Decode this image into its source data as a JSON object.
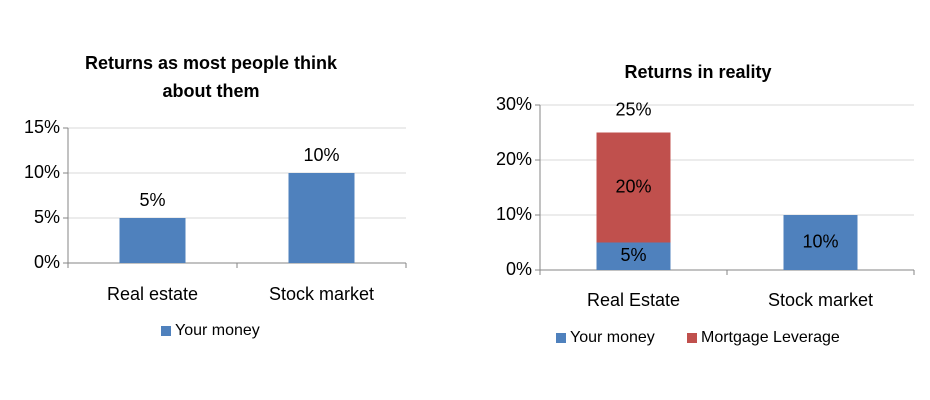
{
  "chart_data": [
    {
      "type": "bar",
      "title": "Returns as most people think about them",
      "categories": [
        "Real estate",
        "Stock market"
      ],
      "series": [
        {
          "name": "Your money",
          "color": "#4f81bd",
          "values": [
            5,
            10
          ],
          "value_labels": [
            "5%",
            "10%"
          ]
        }
      ],
      "ylim": [
        0,
        15
      ],
      "yticks": [
        {
          "value": 0,
          "label": "0%"
        },
        {
          "value": 5,
          "label": "5%"
        },
        {
          "value": 10,
          "label": "10%"
        },
        {
          "value": 15,
          "label": "15%"
        }
      ],
      "grid": true,
      "legend": "bottom",
      "label_position": "above"
    },
    {
      "type": "stacked_bar",
      "title": "Returns in reality",
      "categories": [
        "Real Estate",
        "Stock market"
      ],
      "series": [
        {
          "name": "Your money",
          "color": "#4f81bd",
          "values": [
            5,
            10
          ],
          "value_labels": [
            "5%",
            "10%"
          ]
        },
        {
          "name": "Mortgage Leverage",
          "color": "#c0504d",
          "values": [
            20,
            null
          ],
          "value_labels": [
            "20%",
            null
          ]
        }
      ],
      "totals": [
        25,
        null
      ],
      "total_labels": [
        "25%",
        null
      ],
      "ylim": [
        0,
        30
      ],
      "yticks": [
        {
          "value": 0,
          "label": "0%"
        },
        {
          "value": 10,
          "label": "10%"
        },
        {
          "value": 20,
          "label": "20%"
        },
        {
          "value": 30,
          "label": "30%"
        }
      ],
      "grid": true,
      "legend": "bottom",
      "label_position": "center"
    }
  ]
}
